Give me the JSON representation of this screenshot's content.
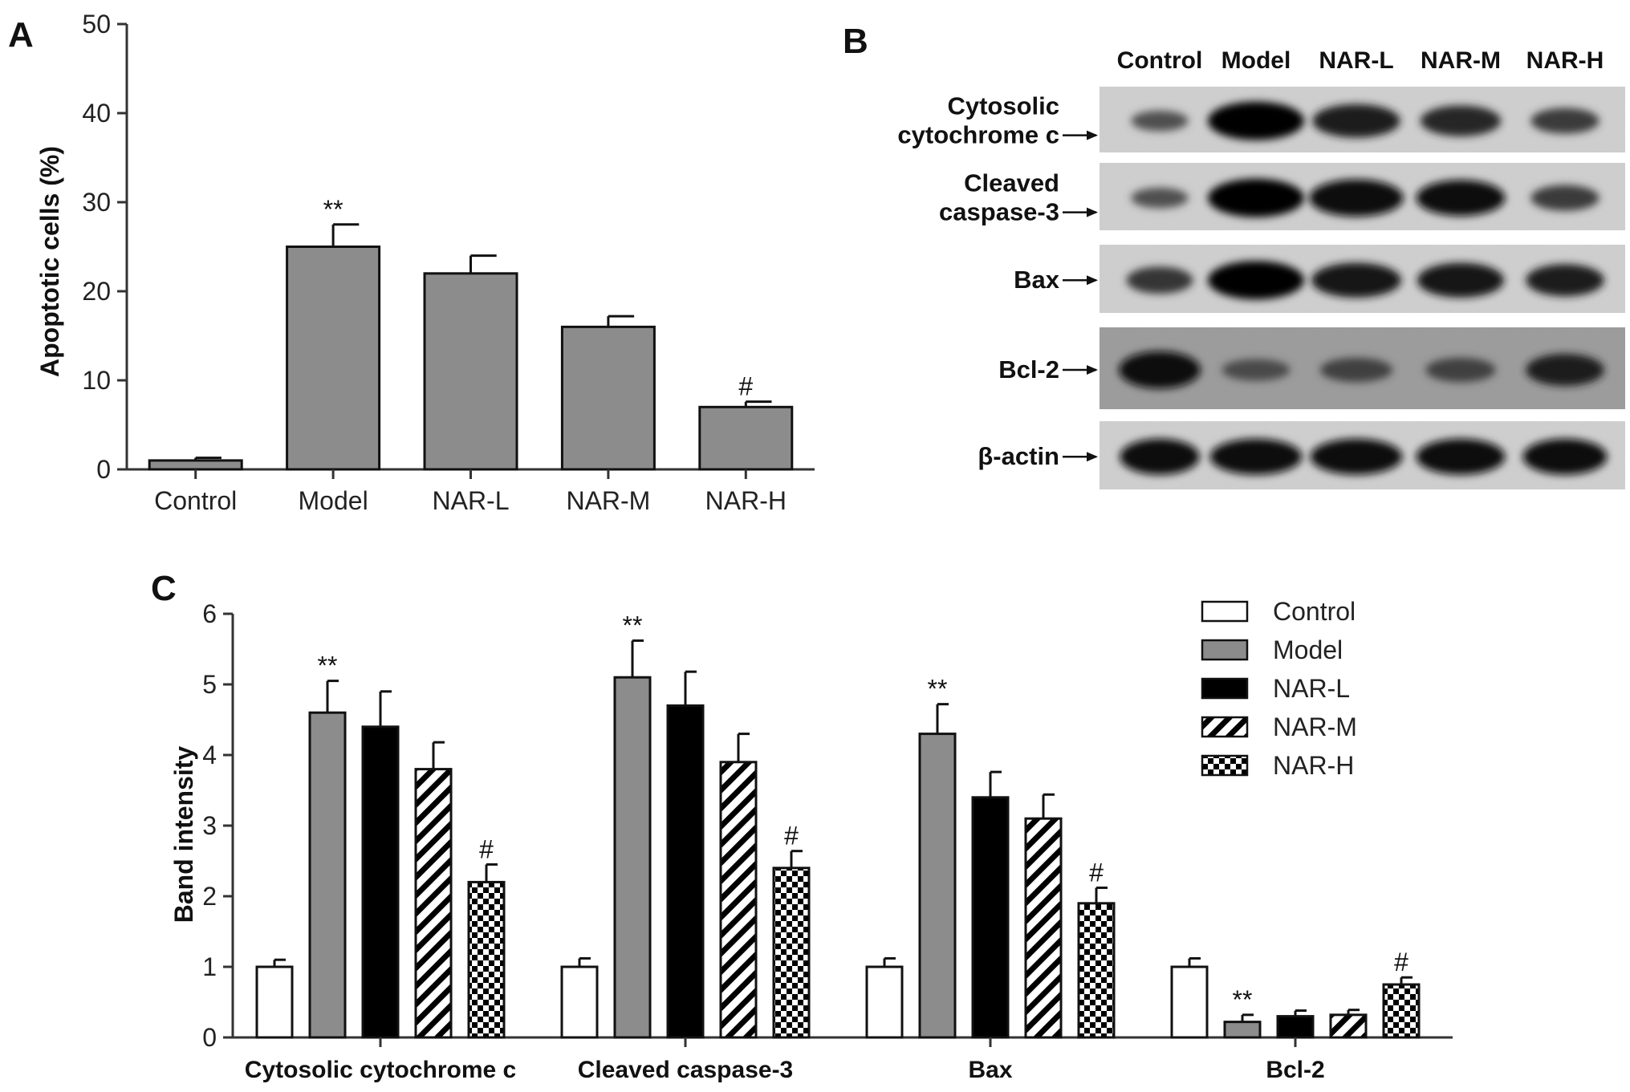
{
  "panels": {
    "a": "A",
    "b": "B",
    "c": "C"
  },
  "colors": {
    "control": "#ffffff",
    "model": "#8c8c8c",
    "nar_l": "#000000",
    "axis": "#333333"
  },
  "chart_data": [
    {
      "type": "bar",
      "ylabel": "Apoptotic cells (%)",
      "xlabel": "",
      "ylim": [
        0,
        50
      ],
      "yticks": [
        0,
        10,
        20,
        30,
        40,
        50
      ],
      "categories": [
        "Control",
        "Model",
        "NAR-L",
        "NAR-M",
        "NAR-H"
      ],
      "values": [
        1,
        25,
        22,
        16,
        7
      ],
      "errors": [
        0.3,
        2.5,
        2.0,
        1.2,
        0.6
      ],
      "significance": [
        "",
        "**",
        "",
        "",
        "#"
      ],
      "grid": false
    },
    {
      "type": "bar",
      "ylabel": "Band intensity",
      "xlabel": "",
      "ylim": [
        0,
        6
      ],
      "yticks": [
        0,
        1,
        2,
        3,
        4,
        5,
        6
      ],
      "categories": [
        "Cytosolic cytochrome c",
        "Cleaved caspase-3",
        "Bax",
        "Bcl-2"
      ],
      "legend_position": "top-right",
      "grid": false,
      "series": [
        {
          "name": "Control",
          "pattern": "white",
          "values": [
            1.0,
            1.0,
            1.0,
            1.0
          ],
          "errors": [
            0.1,
            0.12,
            0.12,
            0.12
          ],
          "significance": [
            "",
            "",
            "",
            ""
          ]
        },
        {
          "name": "Model",
          "pattern": "gray",
          "values": [
            4.6,
            5.1,
            4.3,
            0.22
          ],
          "errors": [
            0.45,
            0.52,
            0.42,
            0.1
          ],
          "significance": [
            "**",
            "**",
            "**",
            "**"
          ]
        },
        {
          "name": "NAR-L",
          "pattern": "black",
          "values": [
            4.4,
            4.7,
            3.4,
            0.3
          ],
          "errors": [
            0.5,
            0.48,
            0.36,
            0.08
          ],
          "significance": [
            "",
            "",
            "",
            ""
          ]
        },
        {
          "name": "NAR-M",
          "pattern": "diagonal",
          "values": [
            3.8,
            3.9,
            3.1,
            0.32
          ],
          "errors": [
            0.38,
            0.4,
            0.34,
            0.07
          ],
          "significance": [
            "",
            "",
            "",
            ""
          ]
        },
        {
          "name": "NAR-H",
          "pattern": "checker",
          "values": [
            2.2,
            2.4,
            1.9,
            0.75
          ],
          "errors": [
            0.25,
            0.24,
            0.22,
            0.1
          ],
          "significance": [
            "#",
            "#",
            "#",
            "#"
          ]
        }
      ]
    }
  ],
  "blot": {
    "lanes": [
      "Control",
      "Model",
      "NAR-L",
      "NAR-M",
      "NAR-H"
    ],
    "rows": [
      {
        "label": "Cytosolic\ncytochrome c",
        "band_intensity": [
          0.3,
          1.0,
          0.8,
          0.7,
          0.5
        ]
      },
      {
        "label": "Cleaved\ncaspase-3",
        "band_intensity": [
          0.3,
          1.0,
          0.95,
          0.9,
          0.5
        ]
      },
      {
        "label": "Bax",
        "band_intensity": [
          0.55,
          1.0,
          0.85,
          0.85,
          0.75
        ]
      },
      {
        "label": "Bcl-2",
        "band_intensity": [
          0.95,
          0.35,
          0.45,
          0.45,
          0.75
        ]
      },
      {
        "label": "β-actin",
        "band_intensity": [
          0.9,
          0.9,
          0.9,
          0.9,
          0.9
        ]
      }
    ]
  }
}
